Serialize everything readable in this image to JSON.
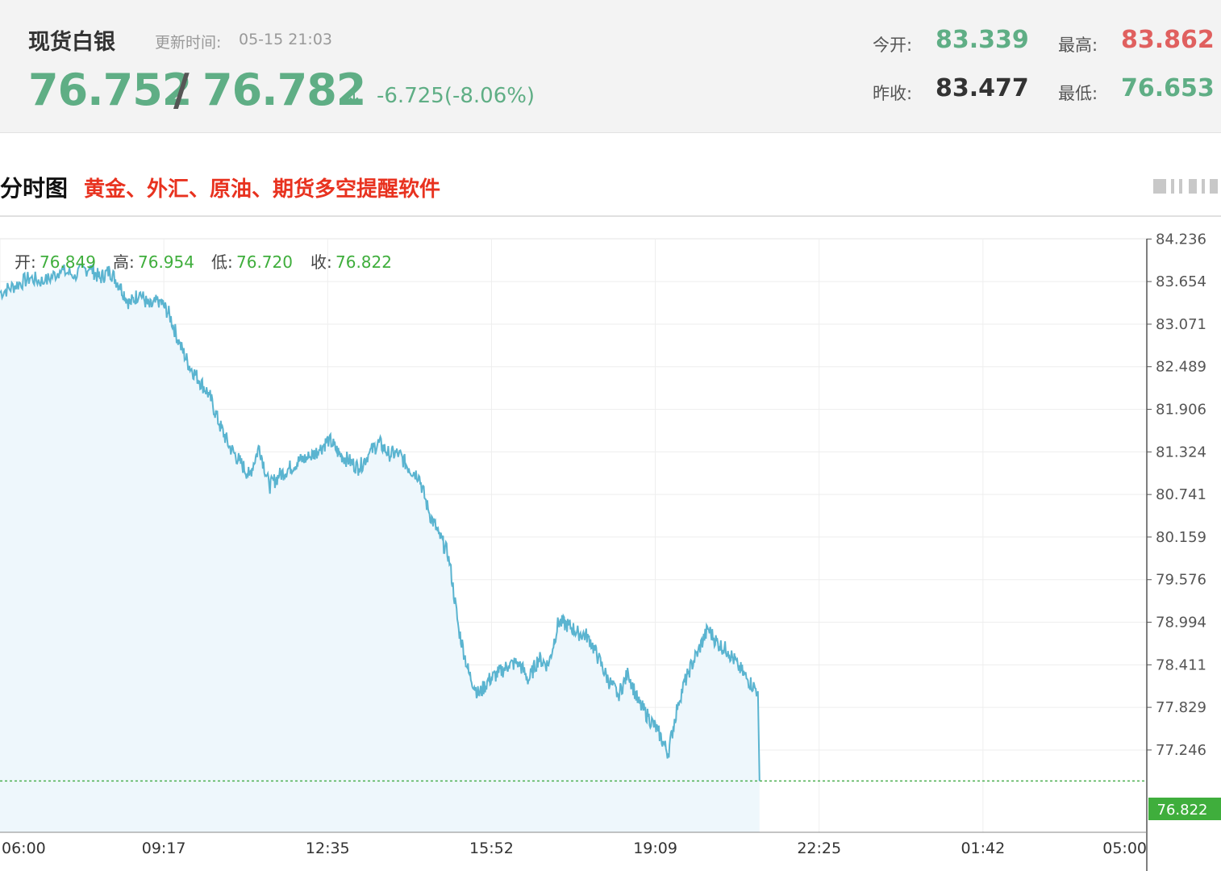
{
  "header": {
    "title": "现货白银",
    "update_label": "更新时间:",
    "update_time": "05-15 21:03",
    "bid": "76.752",
    "slash": "/",
    "ask": "76.782",
    "arrow": "↓",
    "change": "-6.725(-8.06%)",
    "open_label": "今开:",
    "open_value": "83.339",
    "high_label": "最高:",
    "high_value": "83.862",
    "prev_close_label": "昨收:",
    "prev_close_value": "83.477",
    "low_label": "最低:",
    "low_value": "76.653",
    "colors": {
      "up": "#e0605f",
      "down": "#5fae85"
    }
  },
  "section": {
    "title": "分时图",
    "promo": "黄金、外汇、原油、期货多空提醒软件"
  },
  "chart_data": {
    "type": "area",
    "ohlc": {
      "open_label": "开:",
      "open": "76.849",
      "high_label": "高:",
      "high": "76.954",
      "low_label": "低:",
      "low": "76.720",
      "close_label": "收:",
      "close": "76.822"
    },
    "x_ticks": [
      "06:00",
      "09:17",
      "12:35",
      "15:52",
      "19:09",
      "22:25",
      "01:42",
      "05:00"
    ],
    "y_ticks": [
      "84.236",
      "83.654",
      "83.071",
      "82.489",
      "81.906",
      "81.324",
      "80.741",
      "80.159",
      "79.576",
      "78.994",
      "78.411",
      "77.829",
      "77.246"
    ],
    "ylim": [
      76.12,
      84.24
    ],
    "x_range_hours": [
      0,
      23
    ],
    "current_price": "76.822",
    "line_color": "#5ab4d0",
    "fill_color": "#eef7fc",
    "reference_color": "#4caf50",
    "series": [
      {
        "x": [
          0,
          0.3,
          0.6,
          0.9,
          1.2,
          1.5,
          1.8,
          2.0,
          2.2,
          2.4,
          2.6,
          2.8,
          3.0,
          3.2,
          3.4,
          3.6,
          3.8,
          4.0,
          4.2,
          4.4,
          4.6,
          4.8,
          5.0,
          5.2,
          5.4,
          5.6,
          5.8,
          6.0,
          6.2,
          6.4,
          6.6,
          6.8,
          7.0,
          7.2,
          7.4,
          7.6,
          7.8,
          8.0,
          8.2,
          8.4,
          8.6,
          8.8,
          9.0,
          9.2,
          9.4,
          9.6,
          9.8,
          10.0,
          10.2,
          10.4,
          10.6,
          10.8,
          11.0,
          11.2,
          11.4,
          11.6,
          11.8,
          12.0,
          12.2,
          12.4,
          12.6,
          12.8,
          13.0,
          13.2,
          13.4,
          13.6,
          13.8,
          14.0,
          14.2,
          14.4,
          14.6,
          14.8,
          15.0,
          15.2
        ],
        "values": [
          83.5,
          83.6,
          83.7,
          83.65,
          83.8,
          83.75,
          83.85,
          83.7,
          83.8,
          83.6,
          83.35,
          83.5,
          83.3,
          83.4,
          83.2,
          82.8,
          82.5,
          82.3,
          82.1,
          81.7,
          81.4,
          81.2,
          81.0,
          81.4,
          80.85,
          81.0,
          81.1,
          81.2,
          81.25,
          81.35,
          81.5,
          81.3,
          81.2,
          81.1,
          81.3,
          81.45,
          81.3,
          81.3,
          81.1,
          81.0,
          80.5,
          80.2,
          79.9,
          78.9,
          78.3,
          78.0,
          78.2,
          78.3,
          78.4,
          78.45,
          78.2,
          78.5,
          78.4,
          79.0,
          78.95,
          78.85,
          78.8,
          78.5,
          78.2,
          78.0,
          78.3,
          77.9,
          77.7,
          77.5,
          77.2,
          77.9,
          78.3,
          78.6,
          78.9,
          78.7,
          78.6,
          78.4,
          78.2,
          78.05
        ]
      }
    ]
  }
}
